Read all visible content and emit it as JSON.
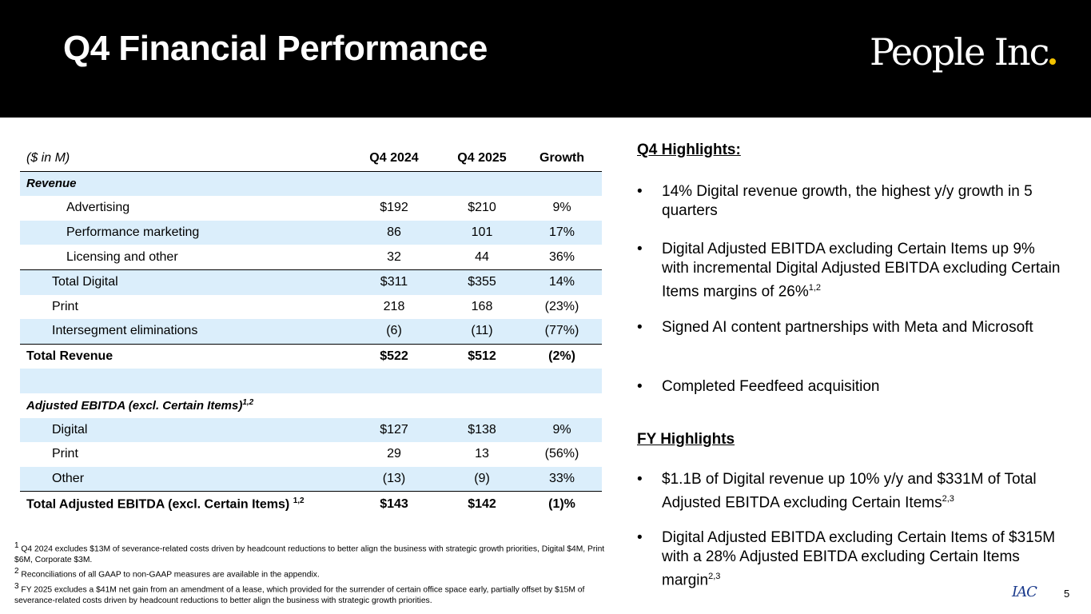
{
  "header": {
    "title": "Q4 Financial Performance",
    "logo": "People Inc",
    "logo_dot_color": "#f2c200"
  },
  "table": {
    "columns": [
      "($ in M)",
      "Q4 2024",
      "Q4 2025",
      "Growth"
    ],
    "rows": [
      {
        "label": "Revenue",
        "q4_2024": "",
        "q4_2025": "",
        "growth": ""
      },
      {
        "label": "Advertising",
        "q4_2024": "$192",
        "q4_2025": "$210",
        "growth": "9%"
      },
      {
        "label": "Performance marketing",
        "q4_2024": "86",
        "q4_2025": "101",
        "growth": "17%"
      },
      {
        "label": "Licensing and other",
        "q4_2024": "32",
        "q4_2025": "44",
        "growth": "36%"
      },
      {
        "label": "Total Digital",
        "q4_2024": "$311",
        "q4_2025": "$355",
        "growth": "14%"
      },
      {
        "label": "Print",
        "q4_2024": "218",
        "q4_2025": "168",
        "growth": "(23%)"
      },
      {
        "label": "Intersegment eliminations",
        "q4_2024": "(6)",
        "q4_2025": "(11)",
        "growth": "(77%)"
      },
      {
        "label": "Total Revenue",
        "q4_2024": "$522",
        "q4_2025": "$512",
        "growth": "(2%)"
      },
      {
        "label": "",
        "q4_2024": "",
        "q4_2025": "",
        "growth": ""
      },
      {
        "label": "Adjusted EBITDA (excl. Certain Items)",
        "sup": "1,2",
        "q4_2024": "",
        "q4_2025": "",
        "growth": ""
      },
      {
        "label": "Digital",
        "q4_2024": "$127",
        "q4_2025": "$138",
        "growth": "9%"
      },
      {
        "label": "Print",
        "q4_2024": "29",
        "q4_2025": "13",
        "growth": "(56%)"
      },
      {
        "label": "Other",
        "q4_2024": "(13)",
        "q4_2025": "(9)",
        "growth": "33%"
      },
      {
        "label": "Total Adjusted EBITDA (excl. Certain Items) ",
        "sup": "1,2",
        "q4_2024": "$143",
        "q4_2025": "$142",
        "growth": "(1)%"
      }
    ]
  },
  "footnotes": [
    {
      "num": "1",
      "text": " Q4 2024 excludes $13M of severance-related costs driven by headcount reductions to better align the business with strategic growth priorities, Digital $4M, Print $6M, Corporate $3M."
    },
    {
      "num": "2",
      "text": " Reconciliations of all GAAP to non-GAAP measures are available in the appendix."
    },
    {
      "num": "3",
      "text": " FY 2025 excludes a $41M net gain from an amendment of a lease, which provided for the surrender of certain office space early, partially offset by $15M of severance-related costs driven by headcount reductions to better align the business with strategic growth priorities."
    }
  ],
  "q4_highlights": {
    "heading": "Q4 Highlights:",
    "bullets": [
      {
        "text": "14% Digital revenue growth, the highest y/y growth in 5 quarters",
        "sup": ""
      },
      {
        "text": "Digital Adjusted EBITDA excluding Certain Items up 9% with incremental Digital Adjusted EBITDA excluding Certain Items margins of 26%",
        "sup": "1,2"
      },
      {
        "text": "Signed AI content partnerships with Meta and Microsoft",
        "sup": ""
      },
      {
        "text": "Completed Feedfeed acquisition",
        "sup": ""
      }
    ]
  },
  "fy_highlights": {
    "heading": "FY Highlights",
    "bullets": [
      {
        "text": "$1.1B of Digital revenue up 10% y/y and $331M of Total Adjusted EBITDA excluding Certain Items",
        "sup": "2,3"
      },
      {
        "text": "Digital Adjusted EBITDA excluding Certain Items of $315M with a 28% Adjusted EBITDA excluding Certain Items margin",
        "sup": "2,3"
      }
    ]
  },
  "bullet_char": "•",
  "footer": {
    "brand": "IAC",
    "page_number": "5"
  }
}
